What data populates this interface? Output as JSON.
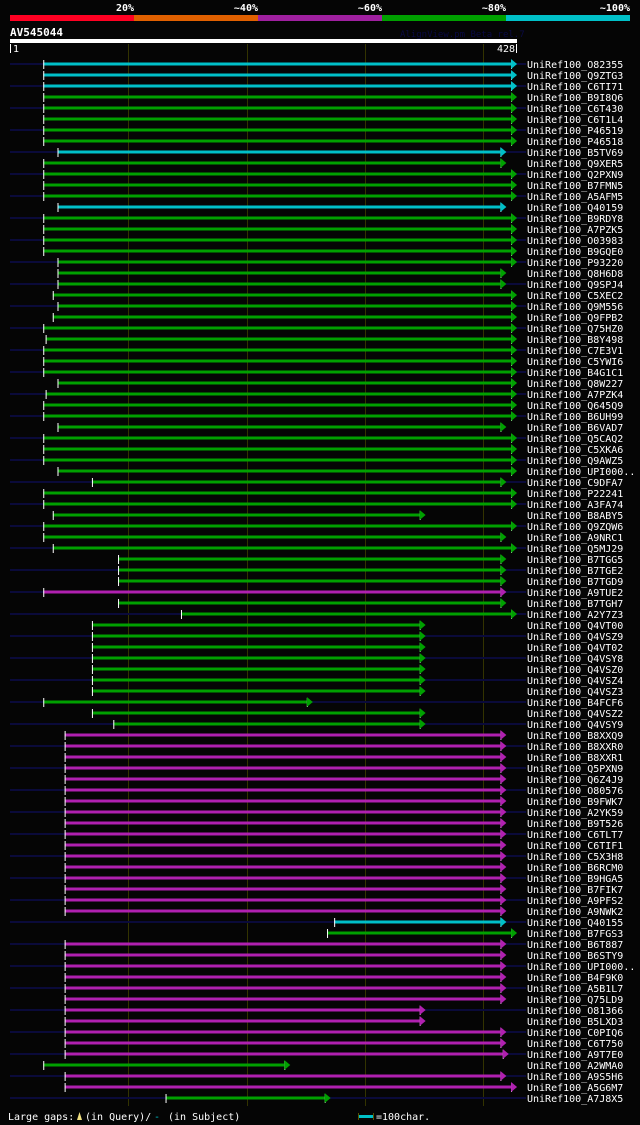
{
  "legend_scale": {
    "labels": [
      "20%",
      "~40%",
      "~60%",
      "~80%",
      "~100%"
    ],
    "colors": [
      "#ff0022",
      "#e06000",
      "#a020a0",
      "#00a000",
      "#00c0c8"
    ]
  },
  "query": {
    "name": "AV545044",
    "watermark": "AlignView.pm Beta rel.7",
    "start_label": "1",
    "end_label": "428",
    "length": 428
  },
  "colors": {
    "cyan": "#00c0c8",
    "green": "#00a000",
    "magenta": "#b020b0",
    "navy": "#0a0a3a",
    "grid": "#333300",
    "background": "#050505"
  },
  "hits": [
    {
      "label": "UniRef100_O82355",
      "start": 29,
      "end": 423,
      "color": "cyan"
    },
    {
      "label": "UniRef100_Q9ZTG3",
      "start": 29,
      "end": 423,
      "color": "cyan"
    },
    {
      "label": "UniRef100_C6TI71",
      "start": 29,
      "end": 423,
      "color": "cyan"
    },
    {
      "label": "UniRef100_B9I8Q6",
      "start": 29,
      "end": 423,
      "color": "green"
    },
    {
      "label": "UniRef100_C6T430",
      "start": 29,
      "end": 423,
      "color": "green"
    },
    {
      "label": "UniRef100_C6T1L4",
      "start": 29,
      "end": 423,
      "color": "green"
    },
    {
      "label": "UniRef100_P46519",
      "start": 29,
      "end": 423,
      "color": "green"
    },
    {
      "label": "UniRef100_P46518",
      "start": 29,
      "end": 423,
      "color": "green"
    },
    {
      "label": "UniRef100_B5TV69",
      "start": 41,
      "end": 414,
      "color": "cyan"
    },
    {
      "label": "UniRef100_Q9XER5",
      "start": 29,
      "end": 414,
      "color": "green"
    },
    {
      "label": "UniRef100_Q2PXN9",
      "start": 29,
      "end": 423,
      "color": "green"
    },
    {
      "label": "UniRef100_B7FMN5",
      "start": 29,
      "end": 423,
      "color": "green"
    },
    {
      "label": "UniRef100_A5AFM5",
      "start": 29,
      "end": 423,
      "color": "green"
    },
    {
      "label": "UniRef100_Q40159",
      "start": 41,
      "end": 414,
      "color": "cyan"
    },
    {
      "label": "UniRef100_B9RDY8",
      "start": 29,
      "end": 423,
      "color": "green"
    },
    {
      "label": "UniRef100_A7PZK5",
      "start": 29,
      "end": 423,
      "color": "green"
    },
    {
      "label": "UniRef100_O03983",
      "start": 29,
      "end": 423,
      "color": "green"
    },
    {
      "label": "UniRef100_B9GQE0",
      "start": 29,
      "end": 423,
      "color": "green"
    },
    {
      "label": "UniRef100_P93220",
      "start": 41,
      "end": 423,
      "color": "green"
    },
    {
      "label": "UniRef100_Q8H6D8",
      "start": 41,
      "end": 414,
      "color": "green"
    },
    {
      "label": "UniRef100_Q9SPJ4",
      "start": 41,
      "end": 414,
      "color": "green"
    },
    {
      "label": "UniRef100_C5XEC2",
      "start": 37,
      "end": 423,
      "color": "green"
    },
    {
      "label": "UniRef100_Q9M556",
      "start": 41,
      "end": 423,
      "color": "green"
    },
    {
      "label": "UniRef100_Q9FPB2",
      "start": 37,
      "end": 423,
      "color": "green"
    },
    {
      "label": "UniRef100_Q75HZ0",
      "start": 29,
      "end": 423,
      "color": "green"
    },
    {
      "label": "UniRef100_B8Y498",
      "start": 31,
      "end": 423,
      "color": "green"
    },
    {
      "label": "UniRef100_C7E3V1",
      "start": 29,
      "end": 423,
      "color": "green"
    },
    {
      "label": "UniRef100_C5YWI6",
      "start": 29,
      "end": 423,
      "color": "green"
    },
    {
      "label": "UniRef100_B4G1C1",
      "start": 29,
      "end": 423,
      "color": "green"
    },
    {
      "label": "UniRef100_Q8W227",
      "start": 41,
      "end": 423,
      "color": "green"
    },
    {
      "label": "UniRef100_A7PZK4",
      "start": 31,
      "end": 423,
      "color": "green"
    },
    {
      "label": "UniRef100_Q645Q9",
      "start": 29,
      "end": 423,
      "color": "green"
    },
    {
      "label": "UniRef100_B6UH99",
      "start": 29,
      "end": 423,
      "color": "green"
    },
    {
      "label": "UniRef100_B6VAD7",
      "start": 41,
      "end": 414,
      "color": "green"
    },
    {
      "label": "UniRef100_Q5CAQ2",
      "start": 29,
      "end": 423,
      "color": "green"
    },
    {
      "label": "UniRef100_C5XKA6",
      "start": 29,
      "end": 423,
      "color": "green"
    },
    {
      "label": "UniRef100_Q9AWZ5",
      "start": 29,
      "end": 423,
      "color": "green"
    },
    {
      "label": "UniRef100_UPI000..",
      "start": 41,
      "end": 423,
      "color": "green"
    },
    {
      "label": "UniRef100_C9DFA7",
      "start": 70,
      "end": 414,
      "color": "green"
    },
    {
      "label": "UniRef100_P22241",
      "start": 29,
      "end": 423,
      "color": "green"
    },
    {
      "label": "UniRef100_A3FA74",
      "start": 29,
      "end": 423,
      "color": "green"
    },
    {
      "label": "UniRef100_B8ABY5",
      "start": 37,
      "end": 346,
      "color": "green"
    },
    {
      "label": "UniRef100_Q9ZQW6",
      "start": 29,
      "end": 423,
      "color": "green"
    },
    {
      "label": "UniRef100_A9NRC1",
      "start": 29,
      "end": 414,
      "color": "green"
    },
    {
      "label": "UniRef100_Q5MJ29",
      "start": 37,
      "end": 423,
      "color": "green"
    },
    {
      "label": "UniRef100_B7TGG5",
      "start": 92,
      "end": 414,
      "color": "green"
    },
    {
      "label": "UniRef100_B7TGE2",
      "start": 92,
      "end": 414,
      "color": "green"
    },
    {
      "label": "UniRef100_B7TGD9",
      "start": 92,
      "end": 414,
      "color": "green"
    },
    {
      "label": "UniRef100_A9TUE2",
      "start": 29,
      "end": 414,
      "color": "magenta"
    },
    {
      "label": "UniRef100_B7TGH7",
      "start": 92,
      "end": 414,
      "color": "green"
    },
    {
      "label": "UniRef100_A2Y7Z3",
      "start": 145,
      "end": 423,
      "color": "green"
    },
    {
      "label": "UniRef100_Q4VT00",
      "start": 70,
      "end": 346,
      "color": "green"
    },
    {
      "label": "UniRef100_Q4VSZ9",
      "start": 70,
      "end": 346,
      "color": "green"
    },
    {
      "label": "UniRef100_Q4VT02",
      "start": 70,
      "end": 346,
      "color": "green"
    },
    {
      "label": "UniRef100_Q4VSY8",
      "start": 70,
      "end": 346,
      "color": "green"
    },
    {
      "label": "UniRef100_Q4VSZ0",
      "start": 70,
      "end": 346,
      "color": "green"
    },
    {
      "label": "UniRef100_Q4VSZ4",
      "start": 70,
      "end": 346,
      "color": "green"
    },
    {
      "label": "UniRef100_Q4VSZ3",
      "start": 70,
      "end": 346,
      "color": "green"
    },
    {
      "label": "UniRef100_B4FCF6",
      "start": 29,
      "end": 251,
      "color": "green"
    },
    {
      "label": "UniRef100_Q4VSZ2",
      "start": 70,
      "end": 346,
      "color": "green"
    },
    {
      "label": "UniRef100_Q4VSY9",
      "start": 88,
      "end": 346,
      "color": "green"
    },
    {
      "label": "UniRef100_B8XXQ9",
      "start": 47,
      "end": 414,
      "color": "magenta"
    },
    {
      "label": "UniRef100_B8XXR0",
      "start": 47,
      "end": 414,
      "color": "magenta"
    },
    {
      "label": "UniRef100_B8XXR1",
      "start": 47,
      "end": 414,
      "color": "magenta"
    },
    {
      "label": "UniRef100_Q5PXN9",
      "start": 47,
      "end": 414,
      "color": "magenta"
    },
    {
      "label": "UniRef100_Q6Z4J9",
      "start": 47,
      "end": 414,
      "color": "magenta"
    },
    {
      "label": "UniRef100_O80576",
      "start": 47,
      "end": 414,
      "color": "magenta"
    },
    {
      "label": "UniRef100_B9FWK7",
      "start": 47,
      "end": 414,
      "color": "magenta"
    },
    {
      "label": "UniRef100_A2YK59",
      "start": 47,
      "end": 414,
      "color": "magenta"
    },
    {
      "label": "UniRef100_B9T526",
      "start": 47,
      "end": 414,
      "color": "magenta"
    },
    {
      "label": "UniRef100_C6TLT7",
      "start": 47,
      "end": 414,
      "color": "magenta"
    },
    {
      "label": "UniRef100_C6TIF1",
      "start": 47,
      "end": 414,
      "color": "magenta"
    },
    {
      "label": "UniRef100_C5X3H8",
      "start": 47,
      "end": 414,
      "color": "magenta"
    },
    {
      "label": "UniRef100_B6RCM0",
      "start": 47,
      "end": 414,
      "color": "magenta"
    },
    {
      "label": "UniRef100_B9HGA5",
      "start": 47,
      "end": 414,
      "color": "magenta"
    },
    {
      "label": "UniRef100_B7FIK7",
      "start": 47,
      "end": 414,
      "color": "magenta"
    },
    {
      "label": "UniRef100_A9PFS2",
      "start": 47,
      "end": 414,
      "color": "magenta"
    },
    {
      "label": "UniRef100_A9NWK2",
      "start": 47,
      "end": 414,
      "color": "magenta"
    },
    {
      "label": "UniRef100_Q40155",
      "start": 274,
      "end": 414,
      "color": "cyan"
    },
    {
      "label": "UniRef100_B7FGS3",
      "start": 268,
      "end": 423,
      "color": "green"
    },
    {
      "label": "UniRef100_B6T887",
      "start": 47,
      "end": 414,
      "color": "magenta"
    },
    {
      "label": "UniRef100_B6STY9",
      "start": 47,
      "end": 414,
      "color": "magenta"
    },
    {
      "label": "UniRef100_UPI000..",
      "start": 47,
      "end": 414,
      "color": "magenta"
    },
    {
      "label": "UniRef100_B4F9K0",
      "start": 47,
      "end": 414,
      "color": "magenta"
    },
    {
      "label": "UniRef100_A5B1L7",
      "start": 47,
      "end": 414,
      "color": "magenta"
    },
    {
      "label": "UniRef100_Q75LD9",
      "start": 47,
      "end": 414,
      "color": "magenta"
    },
    {
      "label": "UniRef100_O81366",
      "start": 47,
      "end": 346,
      "color": "magenta"
    },
    {
      "label": "UniRef100_B5LXD3",
      "start": 47,
      "end": 346,
      "color": "magenta"
    },
    {
      "label": "UniRef100_C0PIQ6",
      "start": 47,
      "end": 414,
      "color": "magenta"
    },
    {
      "label": "UniRef100_C6T750",
      "start": 47,
      "end": 414,
      "color": "magenta"
    },
    {
      "label": "UniRef100_A9T7E0",
      "start": 47,
      "end": 416,
      "color": "magenta"
    },
    {
      "label": "UniRef100_A2WMA0",
      "start": 29,
      "end": 232,
      "color": "green"
    },
    {
      "label": "UniRef100_A9S5H6",
      "start": 47,
      "end": 414,
      "color": "magenta"
    },
    {
      "label": "UniRef100_A5G6M7",
      "start": 47,
      "end": 423,
      "color": "magenta"
    },
    {
      "label": "UniRef100_A7J8X5",
      "start": 132,
      "end": 266,
      "color": "green"
    }
  ],
  "footer": {
    "gaps_label": "Large gaps:",
    "query_gap_text": "(in Query)/",
    "subject_gap_dash": "-",
    "subject_gap_text": " (in Subject)",
    "scale_text": "=100char."
  }
}
